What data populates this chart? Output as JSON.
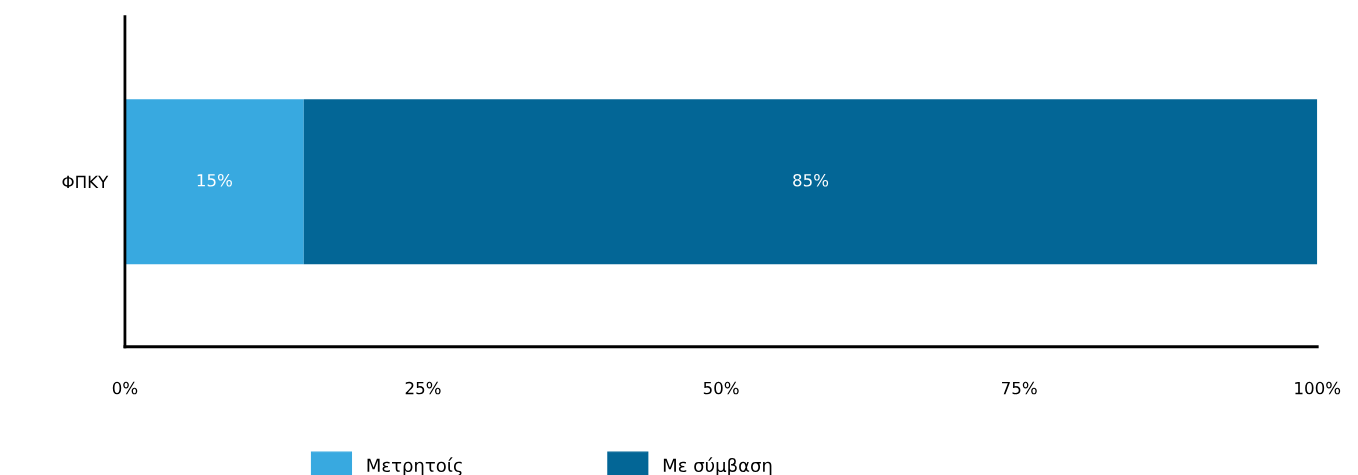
{
  "chart_data": {
    "type": "bar",
    "orientation": "horizontal",
    "stacked": true,
    "categories": [
      "ΦΠΚΥ"
    ],
    "series": [
      {
        "name": "Μετρητοίς",
        "color": "#38a9e0",
        "values": [
          15
        ],
        "value_labels": [
          "15%"
        ]
      },
      {
        "name": "Με σύμβαση",
        "color": "#036696",
        "values": [
          85
        ],
        "value_labels": [
          "85%"
        ]
      }
    ],
    "xlim": [
      0,
      100
    ],
    "xticks": [
      {
        "value": 0,
        "label": "0%"
      },
      {
        "value": 25,
        "label": "25%"
      },
      {
        "value": 50,
        "label": "50%"
      },
      {
        "value": 75,
        "label": "75%"
      },
      {
        "value": 100,
        "label": "100%"
      }
    ],
    "grid": false,
    "legend": "bottom"
  }
}
